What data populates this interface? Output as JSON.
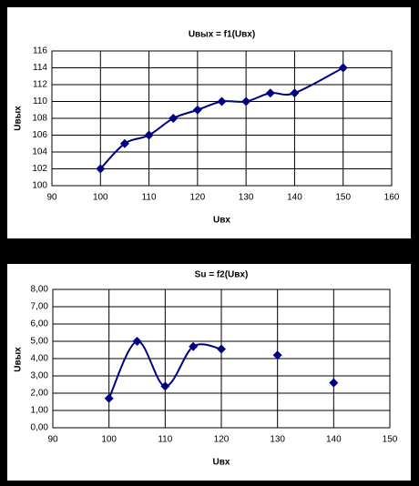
{
  "chart_data": [
    {
      "type": "line",
      "title": "Uвых = f1(Uвх)",
      "x_label": "Uвх",
      "y_label": "Uвых",
      "x": [
        100,
        105,
        110,
        115,
        120,
        125,
        130,
        135,
        140,
        150
      ],
      "values": [
        102,
        105,
        106,
        108,
        109,
        110,
        110,
        111,
        111,
        114
      ],
      "color": "#000080",
      "smooth": true,
      "marker": "diamond",
      "grid": true,
      "xlim": [
        90,
        160
      ],
      "xticks": [
        90,
        100,
        110,
        120,
        130,
        140,
        150,
        160
      ],
      "ylim": [
        100,
        116
      ],
      "yticks": [
        100,
        102,
        104,
        106,
        108,
        110,
        112,
        114,
        116
      ]
    },
    {
      "type": "line",
      "title": "Su = f2(Uвх)",
      "x_label": "Uвх",
      "y_label": "Uвых",
      "x": [
        100,
        105,
        110,
        115,
        120,
        125,
        130,
        135,
        140
      ],
      "values": [
        1.7,
        5.0,
        2.4,
        4.7,
        4.55,
        null,
        4.2,
        null,
        2.6
      ],
      "color": "#000080",
      "smooth": true,
      "marker": "diamond",
      "grid": true,
      "xlim": [
        90,
        150
      ],
      "xticks": [
        90,
        100,
        110,
        120,
        130,
        140,
        150
      ],
      "ylim": [
        0,
        8
      ],
      "yticks": [
        {
          "value": 0,
          "label": "0,00"
        },
        {
          "value": 1,
          "label": "1,00"
        },
        {
          "value": 2,
          "label": "2,00"
        },
        {
          "value": 3,
          "label": "3,00"
        },
        {
          "value": 4,
          "label": "4,00"
        },
        {
          "value": 5,
          "label": "5,00"
        },
        {
          "value": 6,
          "label": "6,00"
        },
        {
          "value": 7,
          "label": "7,00"
        },
        {
          "value": 8,
          "label": "8,00"
        }
      ]
    }
  ]
}
